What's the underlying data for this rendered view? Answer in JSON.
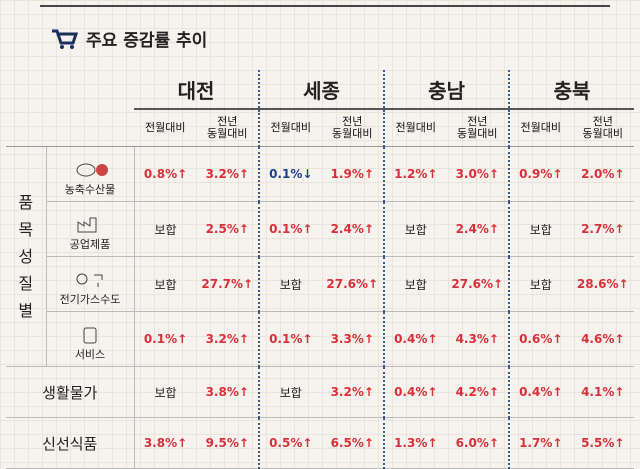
{
  "header": {
    "title": "주요 증감률 추이"
  },
  "table": {
    "regions": [
      "대전",
      "세종",
      "충남",
      "충북"
    ],
    "columns": [
      "전월대비",
      "전년\n동월대비",
      "전월대비",
      "전년\n동월대비",
      "전월대비",
      "전년\n동월대비",
      "전월대비",
      "전년\n동월대비"
    ],
    "group": "품\n목\n성\n질\n별",
    "rows": [
      {
        "label": "농축수산물",
        "cells": [
          "0.8%↑",
          "3.2%↑",
          "0.1%↓",
          "1.9%↑",
          "1.2%↑",
          "3.0%↑",
          "0.9%↑",
          "2.0%↑"
        ]
      },
      {
        "label": "공업제품",
        "cells": [
          "보합",
          "2.5%↑",
          "0.1%↑",
          "2.4%↑",
          "보합",
          "2.4%↑",
          "보합",
          "2.7%↑"
        ]
      },
      {
        "label": "전기가스수도",
        "cells": [
          "보합",
          "27.7%↑",
          "보합",
          "27.6%↑",
          "보합",
          "27.6%↑",
          "보합",
          "28.6%↑"
        ]
      },
      {
        "label": "서비스",
        "cells": [
          "0.1%↑",
          "3.2%↑",
          "0.1%↑",
          "3.3%↑",
          "0.4%↑",
          "4.3%↑",
          "0.6%↑",
          "4.6%↑"
        ]
      },
      {
        "label": "생활물가",
        "cells": [
          "보합",
          "3.8%↑",
          "보합",
          "3.2%↑",
          "0.4%↑",
          "4.2%↑",
          "0.4%↑",
          "4.1%↑"
        ]
      },
      {
        "label": "신선식품",
        "cells": [
          "3.8%↑",
          "9.5%↑",
          "0.5%↑",
          "6.5%↑",
          "1.3%↑",
          "6.0%↑",
          "1.7%↑",
          "5.5%↑"
        ]
      }
    ]
  }
}
